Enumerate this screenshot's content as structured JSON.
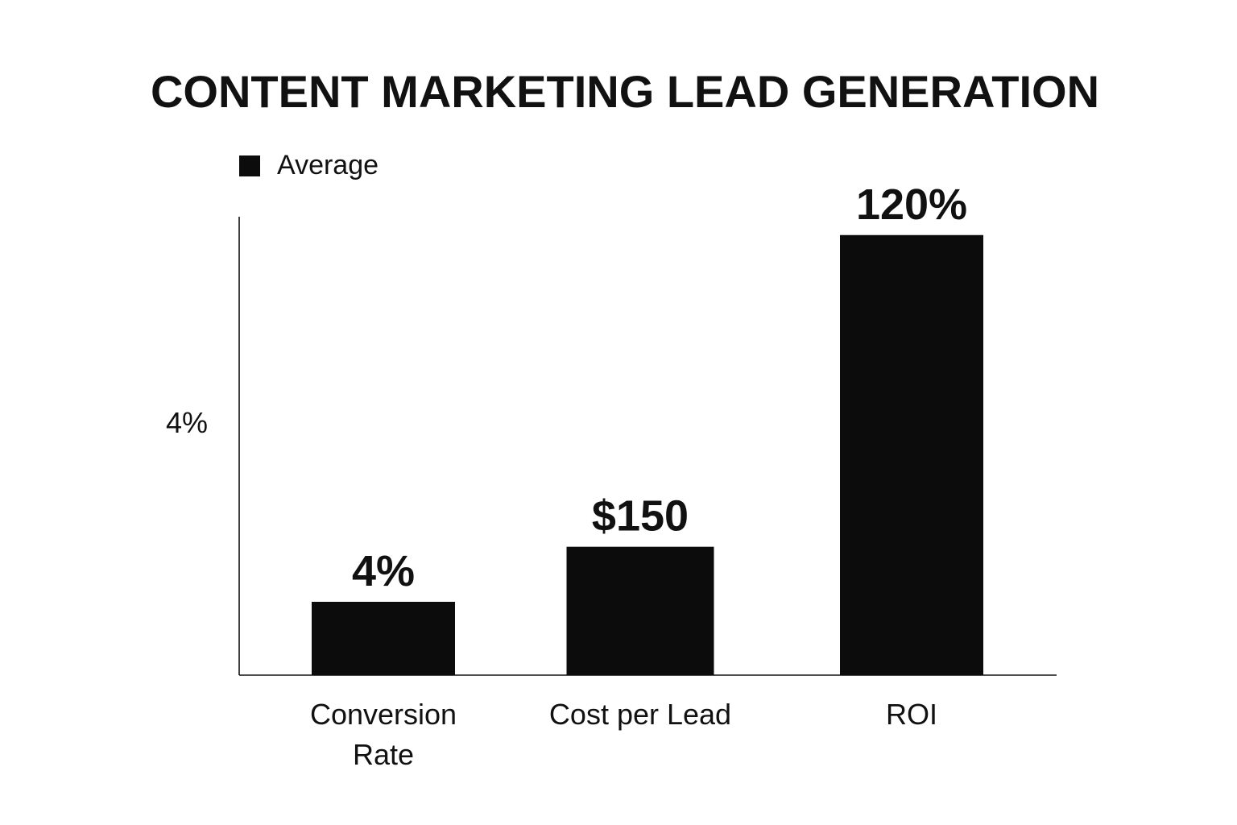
{
  "chart_data": {
    "type": "bar",
    "title": "CONTENT MARKETING LEAD GENERATION",
    "legend": {
      "placement": "top-left",
      "entries": [
        {
          "label": "Average",
          "color": "#0c0c0d"
        }
      ]
    },
    "categories": [
      "Conversion Rate",
      "Cost per Lead",
      "ROI"
    ],
    "category_lines": [
      [
        "Conversion",
        "Rate"
      ],
      [
        "Cost per Lead"
      ],
      [
        "ROI"
      ]
    ],
    "series": [
      {
        "name": "Average",
        "values": [
          4,
          150,
          120
        ],
        "display_heights": [
          0.16,
          0.28,
          0.96
        ],
        "data_labels": [
          "4%",
          "$150",
          "120%"
        ]
      }
    ],
    "y_tick_labels": [
      "4%"
    ],
    "y_tick_positions": [
      0.55
    ],
    "xlabel": "",
    "ylabel": "",
    "grid": false,
    "colors": {
      "bar": "#0c0c0d",
      "axis": "#111111",
      "text": "#111111"
    }
  }
}
